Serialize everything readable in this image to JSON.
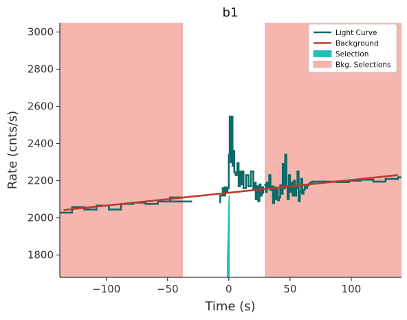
{
  "chart_data": {
    "type": "line",
    "title": "b1",
    "xlabel": "Time (s)",
    "ylabel": "Rate (cnts/s)",
    "xlim": [
      -138,
      141
    ],
    "ylim": [
      1680,
      3050
    ],
    "xticks": [
      -100,
      -50,
      0,
      50,
      100
    ],
    "xtick_labels": [
      "−100",
      "−50",
      "0",
      "50",
      "100"
    ],
    "yticks": [
      1800,
      2000,
      2200,
      2400,
      2600,
      2800,
      3000
    ],
    "ytick_labels": [
      "1800",
      "2000",
      "2200",
      "2400",
      "2600",
      "2800",
      "3000"
    ],
    "legend_position": "top-right",
    "grid": false,
    "colors": {
      "light_curve": "#0e6b67",
      "background": "#c0392b",
      "selection": "#20c0b8",
      "bkg_selection_fill": "#f4b6ae",
      "bkg_selection_edge": "#ef9990"
    },
    "legend": [
      {
        "label": "Light Curve",
        "kind": "line",
        "color": "#0e6b67"
      },
      {
        "label": "Background",
        "kind": "line",
        "color": "#c0392b"
      },
      {
        "label": "Selection",
        "kind": "patch",
        "color": "#20c0b8"
      },
      {
        "label": "Bkg. Selections",
        "kind": "patch",
        "color": "#f4b6ae"
      }
    ],
    "background_line": {
      "x": [
        -135,
        138
      ],
      "y": [
        2042,
        2230
      ]
    },
    "bkg_selections": [
      {
        "x0": -138,
        "x1": -38
      },
      {
        "x0": 30,
        "x1": 141
      }
    ],
    "selection": {
      "x": [
        -1.2,
        -0.9,
        -0.6,
        -0.3,
        0.0,
        0.3
      ],
      "y": [
        1760,
        1840,
        1900,
        2000,
        2080,
        2120
      ]
    },
    "light_curve_segments": [
      {
        "x": [
          -138,
          -128,
          -128,
          -118,
          -118,
          -108,
          -108,
          -98,
          -98,
          -88,
          -88,
          -78,
          -78,
          -68,
          -68,
          -58,
          -58,
          -48,
          -48,
          -38
        ],
        "y": [
          2028,
          2028,
          2058,
          2058,
          2045,
          2045,
          2066,
          2066,
          2045,
          2045,
          2075,
          2075,
          2082,
          2082,
          2075,
          2075,
          2088,
          2088,
          2110,
          2110
        ]
      },
      {
        "x": [
          -48,
          -38,
          -38,
          -30
        ],
        "y": [
          2088,
          2088,
          2088,
          2088
        ]
      },
      {
        "x": [
          -7,
          -7,
          -5,
          -5,
          -4,
          -4,
          -3,
          -3,
          -2,
          -2,
          -1,
          -1,
          0,
          0,
          0.7,
          0.7,
          1.5,
          1.5,
          2.2,
          2.2,
          3,
          3,
          3.7,
          3.7,
          4.5,
          4.5,
          5.5,
          5.5,
          7,
          7,
          8,
          8,
          9,
          9,
          10,
          10,
          11,
          11,
          12,
          12,
          14,
          14,
          16,
          16,
          18,
          18,
          20,
          20,
          21,
          21,
          22,
          22,
          23,
          23,
          24,
          24,
          25,
          25,
          26,
          26,
          27,
          27,
          28,
          28
        ],
        "y": [
          2080,
          2120,
          2120,
          2160,
          2160,
          2120,
          2120,
          2165,
          2165,
          2140,
          2140,
          2160,
          2160,
          2340,
          2340,
          2545,
          2545,
          2300,
          2300,
          2545,
          2545,
          2280,
          2280,
          2360,
          2360,
          2245,
          2245,
          2230,
          2230,
          2295,
          2295,
          2170,
          2170,
          2250,
          2250,
          2180,
          2180,
          2250,
          2250,
          2160,
          2160,
          2230,
          2230,
          2170,
          2170,
          2250,
          2250,
          2150,
          2150,
          2190,
          2190,
          2100,
          2100,
          2170,
          2170,
          2090,
          2090,
          2180,
          2180,
          2120,
          2120,
          2165,
          2165,
          2130
        ]
      },
      {
        "x": [
          29,
          30,
          30,
          31,
          31,
          32,
          32,
          33,
          33,
          34,
          34,
          35,
          35,
          36,
          36,
          37,
          37,
          38,
          38,
          39,
          39,
          40,
          40,
          41,
          41,
          42,
          42,
          43,
          43,
          44,
          44,
          45,
          45,
          46,
          46,
          47,
          47,
          48,
          48,
          49,
          49,
          50,
          50,
          51,
          51,
          52,
          52,
          53,
          53,
          54,
          54,
          55,
          55,
          56,
          56,
          57,
          57,
          58,
          58,
          59,
          59,
          60,
          60,
          61,
          61,
          62,
          62,
          63,
          63,
          64,
          64,
          65,
          65,
          66,
          66,
          67
        ],
        "y": [
          2180,
          2180,
          2140,
          2140,
          2190,
          2190,
          2160,
          2160,
          2230,
          2230,
          2150,
          2150,
          2170,
          2170,
          2080,
          2080,
          2165,
          2165,
          2100,
          2100,
          2155,
          2155,
          2095,
          2095,
          2110,
          2110,
          2175,
          2175,
          2130,
          2130,
          2290,
          2290,
          2160,
          2160,
          2340,
          2340,
          2170,
          2170,
          2100,
          2100,
          2230,
          2230,
          2140,
          2140,
          2190,
          2190,
          2120,
          2120,
          2200,
          2200,
          2120,
          2120,
          2160,
          2160,
          2250,
          2250,
          2090,
          2090,
          2140,
          2140,
          2210,
          2210,
          2130,
          2130,
          2150,
          2150,
          2170,
          2170,
          2160,
          2160,
          2175,
          2175,
          2180,
          2180,
          2190,
          2190
        ]
      },
      {
        "x": [
          67,
          68,
          68,
          78,
          78,
          88,
          88,
          98,
          98,
          108,
          108,
          118,
          118,
          128,
          128,
          138,
          138,
          141
        ],
        "y": [
          2190,
          2190,
          2195,
          2195,
          2195,
          2195,
          2192,
          2192,
          2200,
          2200,
          2205,
          2205,
          2195,
          2195,
          2210,
          2210,
          2218,
          2218
        ]
      }
    ]
  }
}
